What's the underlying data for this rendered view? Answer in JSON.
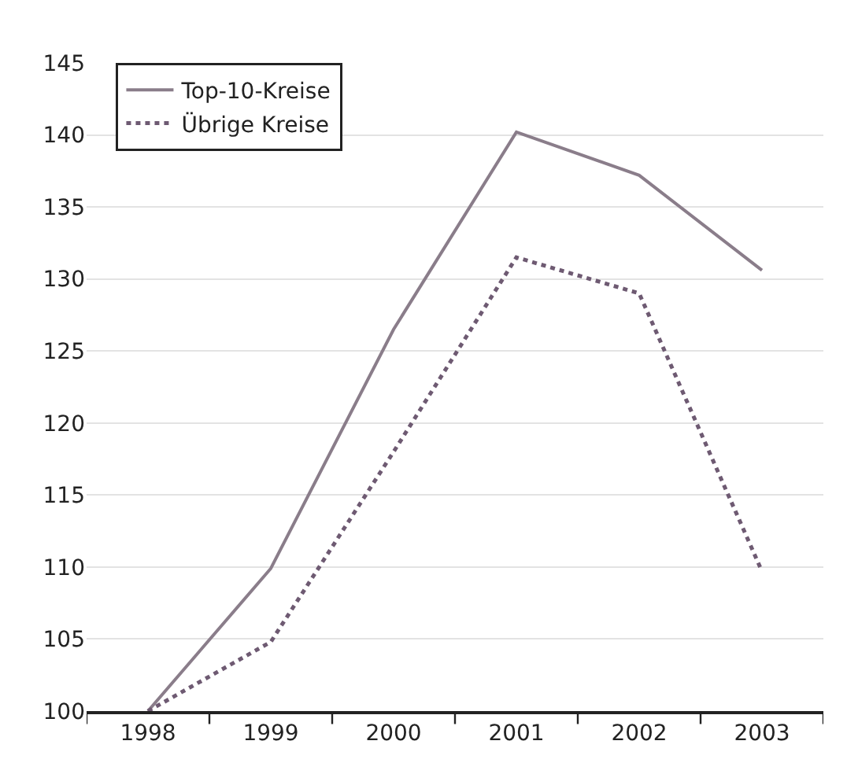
{
  "chart_data": {
    "type": "line",
    "categories": [
      "1998",
      "1999",
      "2000",
      "2001",
      "2002",
      "2003"
    ],
    "series": [
      {
        "name": "Top-10-Kreise",
        "color": "#8a7d8a",
        "line_style": "solid",
        "values": [
          100,
          109.9,
          126.5,
          140.2,
          137.2,
          130.6
        ]
      },
      {
        "name": "Übrige Kreise",
        "color": "#6e5a72",
        "line_style": "dotted",
        "values": [
          100,
          104.8,
          118,
          131.5,
          129,
          109.7
        ]
      }
    ],
    "ylim": [
      100,
      145
    ],
    "yticks": [
      100,
      105,
      110,
      115,
      120,
      125,
      130,
      135,
      140,
      145
    ],
    "grid": "y",
    "legend": "top left",
    "marker": "none"
  }
}
